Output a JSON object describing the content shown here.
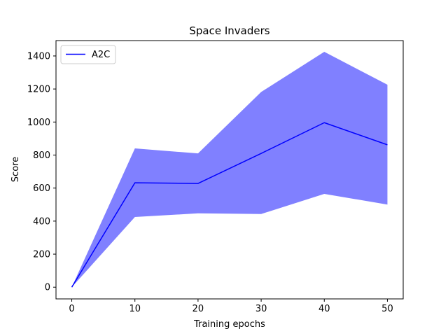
{
  "chart_data": {
    "type": "line",
    "title": "Space Invaders",
    "xlabel": "Training epochs",
    "ylabel": "Score",
    "xlim": [
      -2.5,
      52.5
    ],
    "ylim": [
      -71,
      1493
    ],
    "x_ticks": [
      0,
      10,
      20,
      30,
      40,
      50
    ],
    "y_ticks": [
      0,
      200,
      400,
      600,
      800,
      1000,
      1200,
      1400
    ],
    "grid": false,
    "legend": {
      "position": "top-left",
      "entries": [
        "A2C"
      ]
    },
    "series": [
      {
        "name": "A2C",
        "color": "#0000ff",
        "band_color": "#8080ff",
        "x": [
          0,
          10,
          20,
          30,
          40,
          50
        ],
        "values": [
          0,
          632,
          628,
          810,
          996,
          862
        ],
        "lower": [
          0,
          425,
          447,
          443,
          565,
          500
        ],
        "upper": [
          0,
          840,
          810,
          1182,
          1425,
          1226
        ]
      }
    ]
  }
}
